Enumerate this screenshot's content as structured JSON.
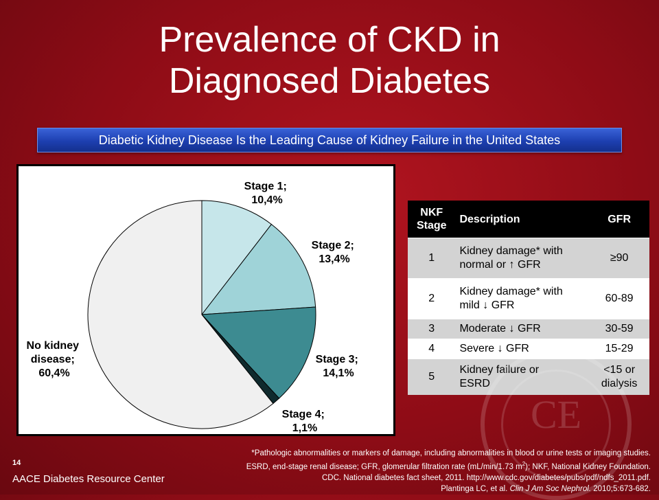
{
  "slide": {
    "title_line1": "Prevalence of CKD in",
    "title_line2": "Diagnosed Diabetes",
    "banner": "Diabetic Kidney Disease Is the Leading Cause of Kidney Failure in the United States",
    "slide_number": "14",
    "organization": "AACE Diabetes Resource Center",
    "seal_text": "CE"
  },
  "chart_data": {
    "type": "pie",
    "slices": [
      {
        "label": "Stage 1;",
        "value_text": "10,4%",
        "value": 10.4,
        "color": "#c6e6ea"
      },
      {
        "label": "Stage 2;",
        "value_text": "13,4%",
        "value": 13.4,
        "color": "#9fd3d8"
      },
      {
        "label": "Stage 3;",
        "value_text": "14,1%",
        "value": 14.1,
        "color": "#3d8b91"
      },
      {
        "label": "Stage 4;",
        "value_text": "1,1%",
        "value": 1.1,
        "color": "#0f2a2d"
      },
      {
        "label_lines": [
          "No kidney",
          "disease;"
        ],
        "value_text": "60,4%",
        "value": 60.4,
        "color": "#f0f0f0"
      }
    ]
  },
  "table": {
    "headers": {
      "stage_line1": "NKF",
      "stage_line2": "Stage",
      "description": "Description",
      "gfr": "GFR"
    },
    "rows": [
      {
        "stage": "1",
        "desc_line1": "Kidney damage* with",
        "desc_line2": "normal or ",
        "arrow": "↑",
        "desc_tail": " GFR",
        "gfr_line1": "≥90",
        "gfr_line2": ""
      },
      {
        "stage": "2",
        "desc_line1": "Kidney damage* with",
        "desc_line2": "mild ",
        "arrow": "↓",
        "desc_tail": " GFR",
        "gfr_line1": "60-89",
        "gfr_line2": ""
      },
      {
        "stage": "3",
        "desc_line1": "",
        "desc_line2": "Moderate ",
        "arrow": "↓",
        "desc_tail": " GFR",
        "gfr_line1": "30-59",
        "gfr_line2": ""
      },
      {
        "stage": "4",
        "desc_line1": "",
        "desc_line2": "Severe ",
        "arrow": "↓",
        "desc_tail": " GFR",
        "gfr_line1": "15-29",
        "gfr_line2": ""
      },
      {
        "stage": "5",
        "desc_line1": "Kidney failure or",
        "desc_line2": "ESRD",
        "arrow": "",
        "desc_tail": "",
        "gfr_line1": "<15 or",
        "gfr_line2": "dialysis"
      }
    ]
  },
  "footnote": {
    "line1": "*Pathologic abnormalities or markers of damage, including abnormalities in blood or urine tests or imaging studies.",
    "line2_pre": "ESRD, end-stage renal disease; GFR, glomerular filtration rate (mL/min/1.73 m",
    "line2_sup": "2",
    "line2_post": "); NKF, National Kidney Foundation.",
    "line3": "CDC. National diabetes fact sheet, 2011. http://www.cdc.gov/diabetes/pubs/pdf/ndfs_2011.pdf.",
    "line4_pre": "Plantinga LC, et al. ",
    "line4_journal": "Clin J Am Soc Nephrol.",
    "line4_post": " 2010;5:673-682."
  }
}
